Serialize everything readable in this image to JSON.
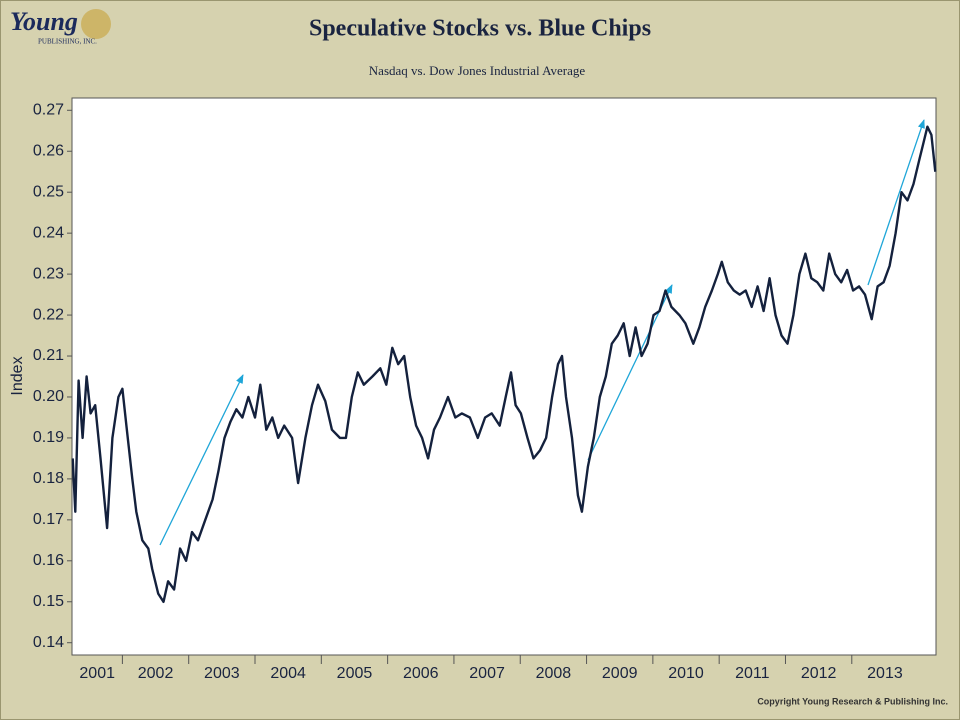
{
  "logo": {
    "name": "Young",
    "subtitle": "PUBLISHING, INC."
  },
  "copyright": "Copyright Young Research & Publishing Inc.",
  "chart_data": {
    "type": "line",
    "title": "Speculative Stocks vs. Blue Chips",
    "subtitle": "Nasdaq vs. Dow Jones Industrial Average",
    "y_label": "Index",
    "color": "#14213d",
    "xlim": [
      2001.24,
      2014.27
    ],
    "ylim": [
      0.137,
      0.273
    ],
    "xticks": [
      2001,
      2002,
      2003,
      2004,
      2005,
      2006,
      2007,
      2008,
      2009,
      2010,
      2011,
      2012,
      2013
    ],
    "yticks": [
      0.14,
      0.15,
      0.16,
      0.17,
      0.18,
      0.19,
      {
        "value": 0.2,
        "label": "0.20"
      },
      0.21,
      0.22,
      0.23,
      0.24,
      0.25,
      0.26,
      0.27
    ],
    "x": [
      2001.25,
      2001.29,
      2001.34,
      2001.4,
      2001.46,
      2001.52,
      2001.59,
      2001.67,
      2001.77,
      2001.85,
      2001.94,
      2002.0,
      2002.06,
      2002.15,
      2002.21,
      2002.3,
      2002.39,
      2002.45,
      2002.54,
      2002.62,
      2002.69,
      2002.78,
      2002.87,
      2002.96,
      2003.05,
      2003.14,
      2003.25,
      2003.36,
      2003.45,
      2003.54,
      2003.63,
      2003.72,
      2003.81,
      2003.9,
      2004.0,
      2004.08,
      2004.17,
      2004.26,
      2004.35,
      2004.44,
      2004.56,
      2004.65,
      2004.76,
      2004.86,
      2004.95,
      2005.06,
      2005.16,
      2005.28,
      2005.37,
      2005.46,
      2005.55,
      2005.64,
      2005.77,
      2005.89,
      2005.98,
      2006.07,
      2006.16,
      2006.25,
      2006.34,
      2006.43,
      2006.52,
      2006.61,
      2006.7,
      2006.79,
      2006.91,
      2007.02,
      2007.12,
      2007.24,
      2007.36,
      2007.47,
      2007.57,
      2007.69,
      2007.78,
      2007.86,
      2007.93,
      2008.01,
      2008.11,
      2008.2,
      2008.3,
      2008.39,
      2008.48,
      2008.57,
      2008.63,
      2008.69,
      2008.78,
      2008.87,
      2008.93,
      2009.02,
      2009.11,
      2009.2,
      2009.29,
      2009.38,
      2009.47,
      2009.56,
      2009.65,
      2009.74,
      2009.83,
      2009.92,
      2010.01,
      2010.1,
      2010.19,
      2010.28,
      2010.4,
      2010.49,
      2010.61,
      2010.7,
      2010.79,
      2010.89,
      2010.98,
      2011.04,
      2011.13,
      2011.22,
      2011.31,
      2011.4,
      2011.49,
      2011.58,
      2011.67,
      2011.76,
      2011.85,
      2011.94,
      2012.03,
      2012.12,
      2012.21,
      2012.3,
      2012.39,
      2012.48,
      2012.57,
      2012.66,
      2012.75,
      2012.84,
      2012.93,
      2013.02,
      2013.11,
      2013.2,
      2013.3,
      2013.39,
      2013.48,
      2013.57,
      2013.66,
      2013.75,
      2013.84,
      2013.93,
      2014.02,
      2014.08,
      2014.14,
      2014.2,
      2014.26
    ],
    "values": [
      0.185,
      0.172,
      0.204,
      0.19,
      0.205,
      0.196,
      0.198,
      0.185,
      0.168,
      0.19,
      0.2,
      0.202,
      0.193,
      0.18,
      0.172,
      0.165,
      0.163,
      0.158,
      0.152,
      0.15,
      0.155,
      0.153,
      0.163,
      0.16,
      0.167,
      0.165,
      0.17,
      0.175,
      0.182,
      0.19,
      0.194,
      0.197,
      0.195,
      0.2,
      0.195,
      0.203,
      0.192,
      0.195,
      0.19,
      0.193,
      0.19,
      0.179,
      0.19,
      0.198,
      0.203,
      0.199,
      0.192,
      0.19,
      0.19,
      0.2,
      0.206,
      0.203,
      0.205,
      0.207,
      0.203,
      0.212,
      0.208,
      0.21,
      0.2,
      0.193,
      0.19,
      0.185,
      0.192,
      0.195,
      0.2,
      0.195,
      0.196,
      0.195,
      0.19,
      0.195,
      0.196,
      0.193,
      0.2,
      0.206,
      0.198,
      0.196,
      0.19,
      0.185,
      0.187,
      0.19,
      0.2,
      0.208,
      0.21,
      0.2,
      0.19,
      0.176,
      0.172,
      0.183,
      0.19,
      0.2,
      0.205,
      0.213,
      0.215,
      0.218,
      0.21,
      0.217,
      0.21,
      0.213,
      0.22,
      0.221,
      0.226,
      0.222,
      0.22,
      0.218,
      0.213,
      0.217,
      0.222,
      0.226,
      0.23,
      0.233,
      0.228,
      0.226,
      0.225,
      0.226,
      0.222,
      0.227,
      0.221,
      0.229,
      0.22,
      0.215,
      0.213,
      0.22,
      0.23,
      0.235,
      0.229,
      0.228,
      0.226,
      0.235,
      0.23,
      0.228,
      0.231,
      0.226,
      0.227,
      0.225,
      0.219,
      0.227,
      0.228,
      0.232,
      0.24,
      0.25,
      0.248,
      0.252,
      0.258,
      0.262,
      0.266,
      0.264,
      0.255
    ]
  }
}
